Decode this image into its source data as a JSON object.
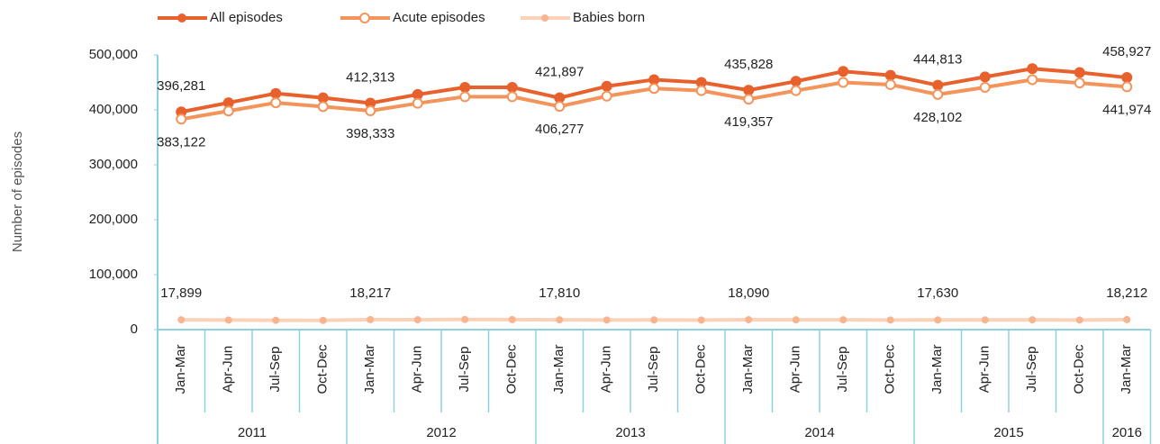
{
  "chart_data": {
    "type": "line",
    "y_label": "Number of episodes",
    "groups": [
      {
        "name": "2011",
        "categories": [
          "Jan-Mar",
          "Apr-Jun",
          "Jul-Sep",
          "Oct-Dec"
        ]
      },
      {
        "name": "2012",
        "categories": [
          "Jan-Mar",
          "Apr-Jun",
          "Jul-Sep",
          "Oct-Dec"
        ]
      },
      {
        "name": "2013",
        "categories": [
          "Jan-Mar",
          "Apr-Jun",
          "Jul-Sep",
          "Oct-Dec"
        ]
      },
      {
        "name": "2014",
        "categories": [
          "Jan-Mar",
          "Apr-Jun",
          "Jul-Sep",
          "Oct-Dec"
        ]
      },
      {
        "name": "2015",
        "categories": [
          "Jan-Mar",
          "Apr-Jun",
          "Jul-Sep",
          "Oct-Dec"
        ]
      },
      {
        "name": "2016",
        "categories": [
          "Jan-Mar"
        ]
      }
    ],
    "series": [
      {
        "name": "All episodes",
        "color": "#e8612c",
        "marker": "filled",
        "values": [
          396281,
          413000,
          430000,
          422000,
          412313,
          428000,
          441000,
          441000,
          421897,
          443000,
          455000,
          450000,
          435828,
          452000,
          470000,
          463000,
          444813,
          460000,
          475000,
          468000,
          458927
        ],
        "value_labels": [
          "396,281",
          null,
          null,
          null,
          "412,313",
          null,
          null,
          null,
          "421,897",
          null,
          null,
          null,
          "435,828",
          null,
          null,
          null,
          "444,813",
          null,
          null,
          null,
          "458,927"
        ]
      },
      {
        "name": "Acute episodes",
        "color": "#f4935a",
        "marker": "hollow",
        "values": [
          383122,
          398000,
          413000,
          406000,
          398333,
          412000,
          424000,
          424000,
          406277,
          425000,
          439000,
          435000,
          419357,
          435000,
          450000,
          446000,
          428102,
          441000,
          455000,
          449000,
          441974
        ],
        "value_labels": [
          "383,122",
          null,
          null,
          null,
          "398,333",
          null,
          null,
          null,
          "406,277",
          null,
          null,
          null,
          "419,357",
          null,
          null,
          null,
          "428,102",
          null,
          null,
          null,
          "441,974"
        ]
      },
      {
        "name": "Babies born",
        "color": "#fbd2b8",
        "marker": "small",
        "values": [
          17899,
          17500,
          17000,
          16800,
          18217,
          18000,
          18500,
          18200,
          17810,
          17500,
          17600,
          17400,
          18090,
          17800,
          17900,
          17500,
          17630,
          17700,
          17900,
          17500,
          18212
        ],
        "value_labels": [
          "17,899",
          null,
          null,
          null,
          "18,217",
          null,
          null,
          null,
          "17,810",
          null,
          null,
          null,
          "18,090",
          null,
          null,
          null,
          "17,630",
          null,
          null,
          null,
          "18,212"
        ]
      }
    ],
    "ylim": [
      0,
      500000
    ],
    "yticks": [
      0,
      {
        "value": 100000,
        "label": "100,000"
      },
      {
        "value": 200000,
        "label": "200,000"
      },
      {
        "value": 300000,
        "label": "300,000"
      },
      {
        "value": 400000,
        "label": "400,000"
      },
      {
        "value": 500000,
        "label": "500,000"
      }
    ],
    "grid": false,
    "legend": "top"
  }
}
